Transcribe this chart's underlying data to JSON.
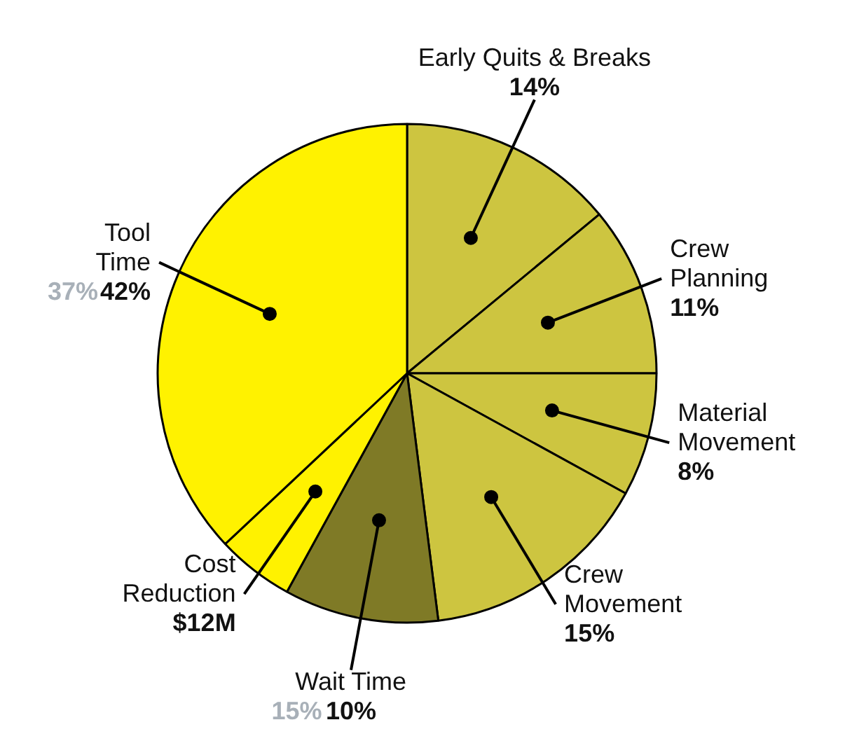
{
  "chart_data": {
    "type": "pie",
    "categories": [
      "Early Quits & Breaks",
      "Crew Planning",
      "Material Movement",
      "Crew Movement",
      "Wait Time",
      "Cost Reduction",
      "Tool Time"
    ],
    "values": [
      14,
      11,
      8,
      15,
      10,
      5,
      37
    ],
    "colors": [
      "#cdc540",
      "#cdc540",
      "#cdc540",
      "#cdc540",
      "#7f7a26",
      "#fff200",
      "#fff200"
    ],
    "value_labels": [
      "14%",
      "11%",
      "8%",
      "15%",
      "10%",
      null,
      null
    ],
    "annotations": [
      {
        "text": "15%",
        "x": "Wait Time"
      },
      {
        "text": "$12M",
        "x": "Cost Reduction"
      },
      {
        "text": "37%",
        "x": "Tool Time"
      },
      {
        "text": "42%",
        "x": "Tool Time"
      }
    ]
  }
}
